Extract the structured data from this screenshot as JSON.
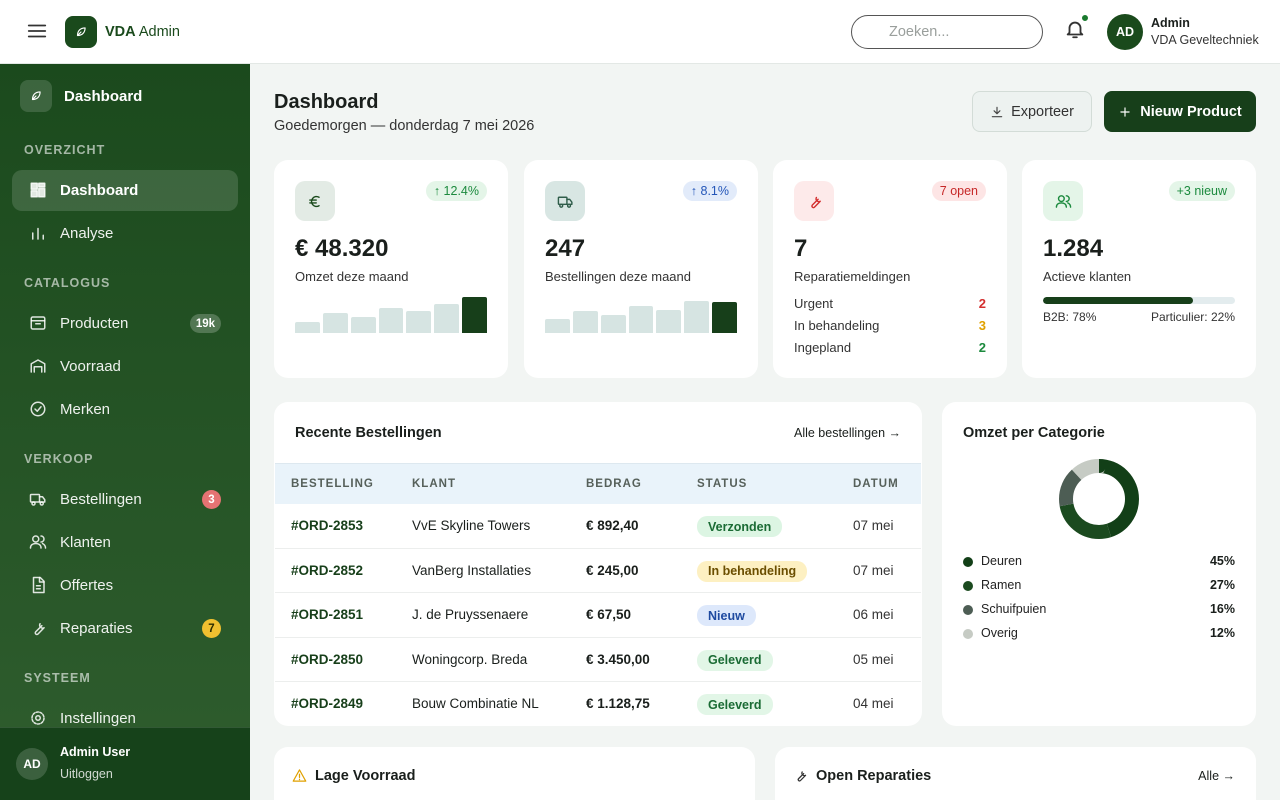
{
  "header": {
    "brand": "VDA",
    "brand_suffix": "Admin",
    "search_placeholder": "Zoeken...",
    "avatar": "AD",
    "user_name": "Admin",
    "user_company": "VDA Geveltechniek"
  },
  "sidebar": {
    "top_item": "Dashboard",
    "sections": [
      {
        "title": "OVERZICHT",
        "items": [
          {
            "label": "Dashboard",
            "active": true
          },
          {
            "label": "Analyse"
          }
        ]
      },
      {
        "title": "CATALOGUS",
        "items": [
          {
            "label": "Producten",
            "badge": "19k"
          },
          {
            "label": "Voorraad"
          },
          {
            "label": "Merken"
          }
        ]
      },
      {
        "title": "VERKOOP",
        "items": [
          {
            "label": "Bestellingen",
            "badge": "3",
            "badge_color": "#e57373"
          },
          {
            "label": "Klanten"
          },
          {
            "label": "Offertes"
          },
          {
            "label": "Reparaties",
            "badge": "7",
            "badge_color": "#f0c030"
          }
        ]
      },
      {
        "title": "SYSTEEM",
        "items": [
          {
            "label": "Instellingen"
          }
        ]
      }
    ],
    "footer": {
      "avatar": "AD",
      "name": "Admin User",
      "action": "Uitloggen"
    }
  },
  "page": {
    "title": "Dashboard",
    "subtitle": "Goedemorgen — donderdag 7 mei 2026",
    "export_button": "Exporteer",
    "new_button": "Nieuw Product"
  },
  "kpis": [
    {
      "value": "€ 48.320",
      "label": "Omzet deze maand",
      "badge": "↑ 12.4%",
      "badge_bg": "#e4f5e8",
      "badge_color": "#1c8a3e",
      "icon_bg": "#e3ebe5",
      "bars": [
        11,
        20,
        16,
        25,
        22,
        29,
        36
      ]
    },
    {
      "value": "247",
      "label": "Bestellingen deze maand",
      "badge": "↑ 8.1%",
      "badge_bg": "#e2ebfa",
      "badge_color": "#2456b8",
      "icon_bg": "#d8e6e3",
      "bars": [
        14,
        22,
        18,
        27,
        23,
        32,
        31
      ]
    },
    {
      "value": "7",
      "label": "Reparatiemeldingen",
      "badge": "7 open",
      "badge_bg": "#fde5e5",
      "badge_color": "#c62828",
      "icon_bg": "#fdeaea",
      "breakdown": [
        {
          "label": "Urgent",
          "count": "2",
          "color": "#d32f2f"
        },
        {
          "label": "In behandeling",
          "count": "3",
          "color": "#e0a100"
        },
        {
          "label": "Ingepland",
          "count": "2",
          "color": "#1c8a3e"
        }
      ]
    },
    {
      "value": "1.284",
      "label": "Actieve klanten",
      "badge": "+3 nieuw",
      "badge_bg": "#e4f5e8",
      "badge_color": "#1c8a3e",
      "icon_bg": "#e4f5e8",
      "split": {
        "value": 78,
        "left_label": "B2B: 78%",
        "right_label": "Particulier: 22%"
      }
    }
  ],
  "orders": {
    "title": "Recente Bestellingen",
    "link": "Alle bestellingen →",
    "columns": [
      "BESTELLING",
      "KLANT",
      "BEDRAG",
      "STATUS",
      "DATUM"
    ],
    "rows": [
      [
        "#ORD-2853",
        "VvE Skyline Towers",
        "€ 892,40",
        "Verzonden",
        "07 mei"
      ],
      [
        "#ORD-2852",
        "VanBerg Installaties",
        "€ 245,00",
        "In behandeling",
        "07 mei"
      ],
      [
        "#ORD-2851",
        "J. de Pruyssenaere",
        "€ 67,50",
        "Nieuw",
        "06 mei"
      ],
      [
        "#ORD-2850",
        "Woningcorp. Breda",
        "€ 3.450,00",
        "Geleverd",
        "05 mei"
      ],
      [
        "#ORD-2849",
        "Bouw Combinatie NL",
        "€ 1.128,75",
        "Geleverd",
        "04 mei"
      ]
    ]
  },
  "category": {
    "title": "Omzet per Categorie",
    "segments": [
      {
        "name": "Deuren",
        "value": 45,
        "label": "45%",
        "color": "#123f17"
      },
      {
        "name": "Ramen",
        "value": 27,
        "label": "27%",
        "color": "#1b4a1f"
      },
      {
        "name": "Schuifpuien",
        "value": 16,
        "label": "16%",
        "color": "#4d5d54"
      },
      {
        "name": "Overig",
        "value": 12,
        "label": "12%",
        "color": "#c6cbc4"
      }
    ]
  },
  "bottom": {
    "low_stock_title": "Lage Voorraad",
    "repairs_title": "Open Reparaties",
    "repairs_link": "Alle →"
  }
}
